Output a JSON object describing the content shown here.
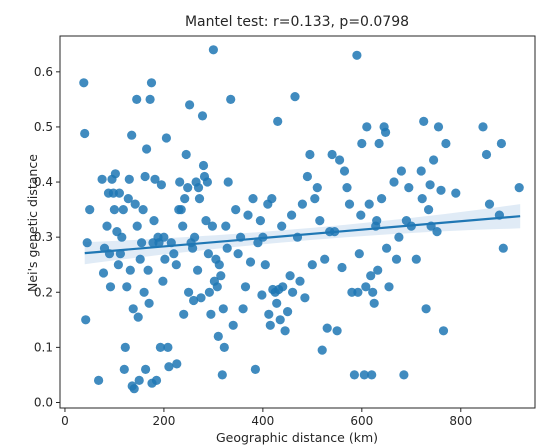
{
  "chart_data": {
    "type": "scatter",
    "title": "Mantel test: r=0.133, p=0.0798",
    "xlabel": "Geographic distance (km)",
    "ylabel": "Nei's genetic distance",
    "xlim": [
      -10,
      950
    ],
    "ylim": [
      -0.01,
      0.665
    ],
    "xticks": [
      0,
      200,
      400,
      600,
      800
    ],
    "yticks": [
      0.0,
      0.1,
      0.2,
      0.3,
      0.4,
      0.5,
      0.6
    ],
    "grid": false,
    "point_color": "#1f77b4",
    "regression": {
      "x": [
        40,
        920
      ],
      "y": [
        0.271,
        0.338
      ],
      "color": "#1f77b4",
      "ci_color": "#c6dbef",
      "ci_halfwidth": [
        0.02,
        0.011,
        0.022
      ]
    },
    "points": [
      [
        38,
        0.58
      ],
      [
        40,
        0.488
      ],
      [
        42,
        0.15
      ],
      [
        45,
        0.29
      ],
      [
        50,
        0.35
      ],
      [
        68,
        0.04
      ],
      [
        75,
        0.405
      ],
      [
        78,
        0.235
      ],
      [
        80,
        0.28
      ],
      [
        85,
        0.32
      ],
      [
        88,
        0.38
      ],
      [
        90,
        0.27
      ],
      [
        92,
        0.21
      ],
      [
        95,
        0.405
      ],
      [
        98,
        0.38
      ],
      [
        100,
        0.35
      ],
      [
        102,
        0.415
      ],
      [
        105,
        0.31
      ],
      [
        108,
        0.25
      ],
      [
        110,
        0.38
      ],
      [
        112,
        0.27
      ],
      [
        115,
        0.3
      ],
      [
        118,
        0.35
      ],
      [
        120,
        0.06
      ],
      [
        122,
        0.1
      ],
      [
        125,
        0.21
      ],
      [
        128,
        0.37
      ],
      [
        130,
        0.405
      ],
      [
        132,
        0.24
      ],
      [
        135,
        0.485
      ],
      [
        136,
        0.03
      ],
      [
        138,
        0.17
      ],
      [
        140,
        0.025
      ],
      [
        142,
        0.36
      ],
      [
        145,
        0.55
      ],
      [
        146,
        0.32
      ],
      [
        148,
        0.155
      ],
      [
        150,
        0.04
      ],
      [
        152,
        0.26
      ],
      [
        155,
        0.29
      ],
      [
        158,
        0.35
      ],
      [
        160,
        0.2
      ],
      [
        162,
        0.41
      ],
      [
        163,
        0.06
      ],
      [
        165,
        0.46
      ],
      [
        168,
        0.24
      ],
      [
        170,
        0.18
      ],
      [
        172,
        0.55
      ],
      [
        175,
        0.58
      ],
      [
        176,
        0.035
      ],
      [
        178,
        0.29
      ],
      [
        180,
        0.33
      ],
      [
        182,
        0.405
      ],
      [
        185,
        0.04
      ],
      [
        188,
        0.3
      ],
      [
        190,
        0.29
      ],
      [
        193,
        0.1
      ],
      [
        195,
        0.395
      ],
      [
        198,
        0.22
      ],
      [
        200,
        0.3
      ],
      [
        202,
        0.26
      ],
      [
        205,
        0.48
      ],
      [
        208,
        0.1
      ],
      [
        210,
        0.065
      ],
      [
        215,
        0.29
      ],
      [
        220,
        0.27
      ],
      [
        225,
        0.25
      ],
      [
        226,
        0.07
      ],
      [
        230,
        0.35
      ],
      [
        232,
        0.4
      ],
      [
        235,
        0.35
      ],
      [
        238,
        0.32
      ],
      [
        240,
        0.16
      ],
      [
        242,
        0.37
      ],
      [
        245,
        0.45
      ],
      [
        248,
        0.39
      ],
      [
        250,
        0.2
      ],
      [
        252,
        0.54
      ],
      [
        255,
        0.29
      ],
      [
        258,
        0.28
      ],
      [
        260,
        0.185
      ],
      [
        262,
        0.3
      ],
      [
        265,
        0.4
      ],
      [
        268,
        0.24
      ],
      [
        270,
        0.39
      ],
      [
        272,
        0.37
      ],
      [
        275,
        0.19
      ],
      [
        278,
        0.52
      ],
      [
        280,
        0.43
      ],
      [
        282,
        0.41
      ],
      [
        285,
        0.33
      ],
      [
        288,
        0.4
      ],
      [
        290,
        0.27
      ],
      [
        292,
        0.2
      ],
      [
        295,
        0.16
      ],
      [
        298,
        0.32
      ],
      [
        300,
        0.64
      ],
      [
        302,
        0.22
      ],
      [
        305,
        0.26
      ],
      [
        308,
        0.21
      ],
      [
        310,
        0.12
      ],
      [
        312,
        0.25
      ],
      [
        315,
        0.23
      ],
      [
        318,
        0.05
      ],
      [
        320,
        0.17
      ],
      [
        322,
        0.1
      ],
      [
        325,
        0.32
      ],
      [
        328,
        0.28
      ],
      [
        330,
        0.4
      ],
      [
        335,
        0.55
      ],
      [
        340,
        0.14
      ],
      [
        345,
        0.35
      ],
      [
        350,
        0.27
      ],
      [
        355,
        0.3
      ],
      [
        360,
        0.17
      ],
      [
        365,
        0.21
      ],
      [
        370,
        0.34
      ],
      [
        375,
        0.255
      ],
      [
        380,
        0.37
      ],
      [
        385,
        0.06
      ],
      [
        390,
        0.29
      ],
      [
        395,
        0.33
      ],
      [
        398,
        0.195
      ],
      [
        400,
        0.3
      ],
      [
        405,
        0.25
      ],
      [
        410,
        0.36
      ],
      [
        412,
        0.16
      ],
      [
        415,
        0.14
      ],
      [
        418,
        0.37
      ],
      [
        420,
        0.205
      ],
      [
        425,
        0.2
      ],
      [
        428,
        0.18
      ],
      [
        430,
        0.51
      ],
      [
        432,
        0.205
      ],
      [
        435,
        0.15
      ],
      [
        438,
        0.32
      ],
      [
        440,
        0.21
      ],
      [
        445,
        0.13
      ],
      [
        450,
        0.165
      ],
      [
        455,
        0.23
      ],
      [
        458,
        0.34
      ],
      [
        460,
        0.2
      ],
      [
        465,
        0.555
      ],
      [
        470,
        0.3
      ],
      [
        475,
        0.22
      ],
      [
        480,
        0.36
      ],
      [
        485,
        0.19
      ],
      [
        490,
        0.41
      ],
      [
        495,
        0.45
      ],
      [
        500,
        0.25
      ],
      [
        505,
        0.37
      ],
      [
        510,
        0.39
      ],
      [
        515,
        0.33
      ],
      [
        520,
        0.095
      ],
      [
        525,
        0.26
      ],
      [
        530,
        0.135
      ],
      [
        535,
        0.31
      ],
      [
        540,
        0.45
      ],
      [
        545,
        0.31
      ],
      [
        550,
        0.13
      ],
      [
        555,
        0.44
      ],
      [
        560,
        0.245
      ],
      [
        565,
        0.42
      ],
      [
        570,
        0.39
      ],
      [
        575,
        0.36
      ],
      [
        580,
        0.2
      ],
      [
        585,
        0.05
      ],
      [
        590,
        0.63
      ],
      [
        592,
        0.2
      ],
      [
        595,
        0.27
      ],
      [
        598,
        0.34
      ],
      [
        600,
        0.47
      ],
      [
        605,
        0.05
      ],
      [
        608,
        0.21
      ],
      [
        610,
        0.5
      ],
      [
        615,
        0.36
      ],
      [
        618,
        0.23
      ],
      [
        620,
        0.05
      ],
      [
        622,
        0.2
      ],
      [
        625,
        0.18
      ],
      [
        628,
        0.32
      ],
      [
        630,
        0.33
      ],
      [
        632,
        0.24
      ],
      [
        635,
        0.47
      ],
      [
        640,
        0.37
      ],
      [
        645,
        0.5
      ],
      [
        648,
        0.49
      ],
      [
        650,
        0.28
      ],
      [
        655,
        0.21
      ],
      [
        665,
        0.4
      ],
      [
        670,
        0.26
      ],
      [
        675,
        0.3
      ],
      [
        680,
        0.42
      ],
      [
        685,
        0.05
      ],
      [
        690,
        0.33
      ],
      [
        695,
        0.39
      ],
      [
        700,
        0.32
      ],
      [
        710,
        0.26
      ],
      [
        720,
        0.42
      ],
      [
        722,
        0.37
      ],
      [
        725,
        0.51
      ],
      [
        730,
        0.17
      ],
      [
        735,
        0.35
      ],
      [
        738,
        0.395
      ],
      [
        740,
        0.32
      ],
      [
        745,
        0.44
      ],
      [
        752,
        0.31
      ],
      [
        755,
        0.5
      ],
      [
        760,
        0.385
      ],
      [
        765,
        0.13
      ],
      [
        770,
        0.47
      ],
      [
        790,
        0.38
      ],
      [
        845,
        0.5
      ],
      [
        852,
        0.45
      ],
      [
        858,
        0.36
      ],
      [
        878,
        0.34
      ],
      [
        882,
        0.47
      ],
      [
        886,
        0.28
      ],
      [
        918,
        0.39
      ]
    ]
  }
}
